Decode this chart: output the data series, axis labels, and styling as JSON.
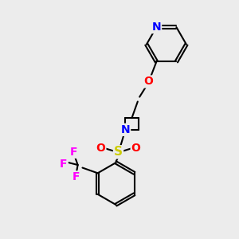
{
  "bg_color": "#ececec",
  "atom_colors": {
    "N": "#0000ff",
    "O": "#ff0000",
    "S": "#cccc00",
    "F": "#ff00ff",
    "C": "#000000"
  },
  "bond_color": "#000000",
  "bond_width": 1.5,
  "dbo": 0.06
}
